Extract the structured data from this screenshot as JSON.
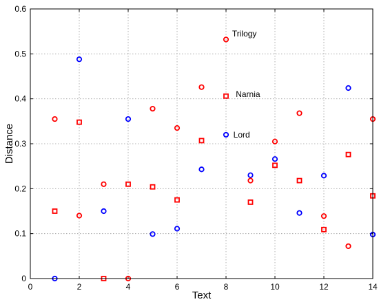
{
  "chart_data": {
    "type": "scatter",
    "xlabel": "Text",
    "ylabel": "Distance",
    "xlim": [
      0,
      14
    ],
    "ylim": [
      0,
      0.6
    ],
    "xticks": [
      0,
      2,
      4,
      6,
      8,
      10,
      12,
      14
    ],
    "yticks": [
      0,
      0.1,
      0.2,
      0.3,
      0.4,
      0.5,
      0.6
    ],
    "grid": true,
    "series": [
      {
        "color": "#0000ff",
        "marker": "circle",
        "points": [
          [
            1,
            0.0
          ],
          [
            2,
            0.488
          ],
          [
            3,
            0.15
          ],
          [
            4,
            0.355
          ],
          [
            5,
            0.099
          ],
          [
            6,
            0.111
          ],
          [
            7,
            0.243
          ],
          [
            8,
            0.32
          ],
          [
            9,
            0.23
          ],
          [
            10,
            0.266
          ],
          [
            11,
            0.146
          ],
          [
            12,
            0.229
          ],
          [
            13,
            0.424
          ],
          [
            14,
            0.098
          ]
        ]
      },
      {
        "color": "#ff0000",
        "marker": "circle",
        "points": [
          [
            1,
            0.355
          ],
          [
            2,
            0.14
          ],
          [
            3,
            0.21
          ],
          [
            4,
            0.0
          ],
          [
            5,
            0.378
          ],
          [
            6,
            0.335
          ],
          [
            7,
            0.426
          ],
          [
            8,
            0.532
          ],
          [
            9,
            0.218
          ],
          [
            10,
            0.305
          ],
          [
            11,
            0.368
          ],
          [
            12,
            0.139
          ],
          [
            13,
            0.072
          ],
          [
            14,
            0.355
          ]
        ]
      },
      {
        "color": "#ff0000",
        "marker": "square",
        "points": [
          [
            1,
            0.15
          ],
          [
            2,
            0.348
          ],
          [
            3,
            0.0
          ],
          [
            4,
            0.21
          ],
          [
            5,
            0.204
          ],
          [
            6,
            0.175
          ],
          [
            7,
            0.307
          ],
          [
            8,
            0.406
          ],
          [
            9,
            0.17
          ],
          [
            10,
            0.252
          ],
          [
            11,
            0.218
          ],
          [
            12,
            0.109
          ],
          [
            13,
            0.276
          ],
          [
            14,
            0.184
          ]
        ]
      }
    ],
    "annotations": [
      {
        "text": "Trilogy",
        "x": 8.25,
        "y": 0.545
      },
      {
        "text": "Narnia",
        "x": 8.4,
        "y": 0.41
      },
      {
        "text": "Lord",
        "x": 8.3,
        "y": 0.32
      }
    ]
  }
}
